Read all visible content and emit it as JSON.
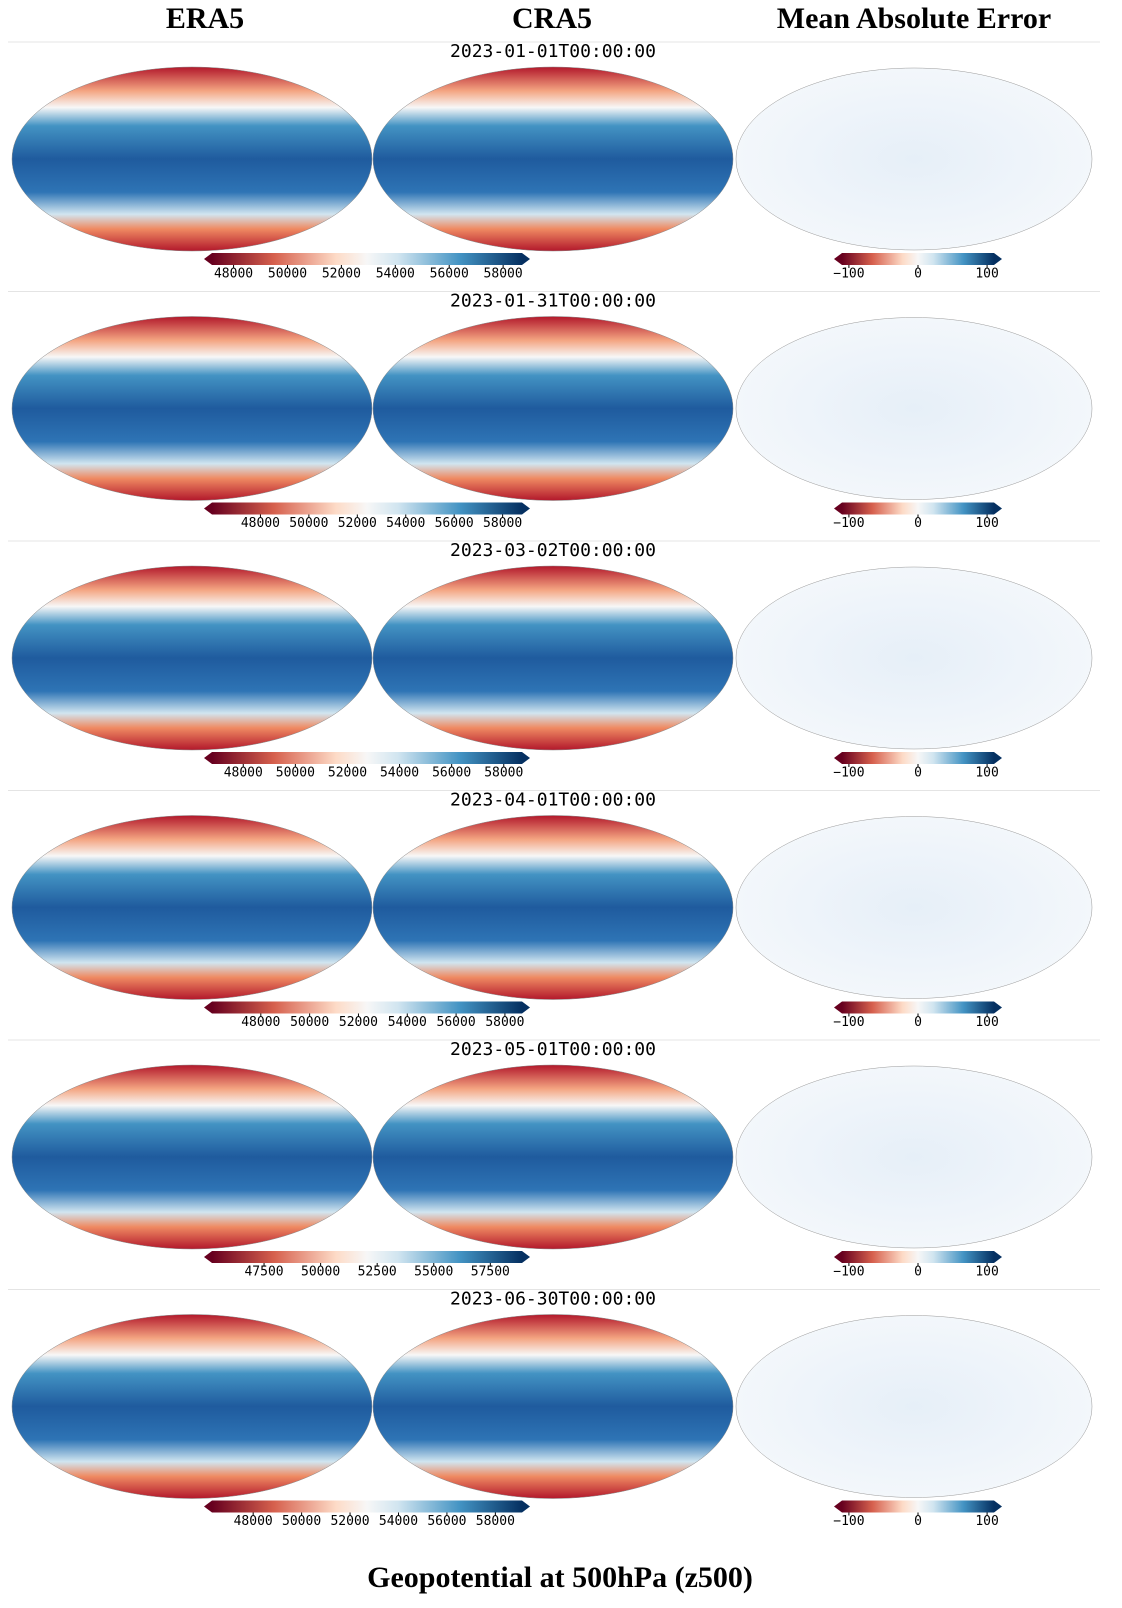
{
  "column_headers": [
    "ERA5",
    "CRA5",
    "Mean Absolute Error"
  ],
  "rows": [
    {
      "date": "2023-01-01T00:00:00",
      "field_colorbar": {
        "lim": [
          47200,
          58700
        ],
        "ticks": [
          48000,
          50000,
          52000,
          54000,
          56000,
          58000
        ]
      },
      "error_colorbar": {
        "lim": [
          -110,
          110
        ],
        "ticks": [
          {
            "value": -100,
            "label": "−100"
          },
          0,
          100
        ]
      }
    },
    {
      "date": "2023-01-31T00:00:00",
      "field_colorbar": {
        "lim": [
          46000,
          58800
        ],
        "ticks": [
          48000,
          50000,
          52000,
          54000,
          56000,
          58000
        ]
      },
      "error_colorbar": {
        "lim": [
          -110,
          110
        ],
        "ticks": [
          {
            "value": -100,
            "label": "−100"
          },
          0,
          100
        ]
      }
    },
    {
      "date": "2023-03-02T00:00:00",
      "field_colorbar": {
        "lim": [
          46800,
          58700
        ],
        "ticks": [
          48000,
          50000,
          52000,
          54000,
          56000,
          58000
        ]
      },
      "error_colorbar": {
        "lim": [
          -110,
          110
        ],
        "ticks": [
          {
            "value": -100,
            "label": "−100"
          },
          0,
          100
        ]
      }
    },
    {
      "date": "2023-04-01T00:00:00",
      "field_colorbar": {
        "lim": [
          46000,
          58700
        ],
        "ticks": [
          48000,
          50000,
          52000,
          54000,
          56000,
          58000
        ]
      },
      "error_colorbar": {
        "lim": [
          -110,
          110
        ],
        "ticks": [
          {
            "value": -100,
            "label": "−100"
          },
          0,
          100
        ]
      }
    },
    {
      "date": "2023-05-01T00:00:00",
      "field_colorbar": {
        "lim": [
          45200,
          58900
        ],
        "ticks": [
          47500,
          50000,
          52500,
          55000,
          57500
        ]
      },
      "error_colorbar": {
        "lim": [
          -110,
          110
        ],
        "ticks": [
          {
            "value": -100,
            "label": "−100"
          },
          0,
          100
        ]
      }
    },
    {
      "date": "2023-06-30T00:00:00",
      "field_colorbar": {
        "lim": [
          46300,
          59100
        ],
        "ticks": [
          48000,
          50000,
          52000,
          54000,
          56000,
          58000
        ]
      },
      "error_colorbar": {
        "lim": [
          -110,
          110
        ],
        "ticks": [
          {
            "value": -100,
            "label": "−100"
          },
          0,
          100
        ]
      }
    }
  ],
  "title": "Geopotential at 500hPa (z500)"
}
